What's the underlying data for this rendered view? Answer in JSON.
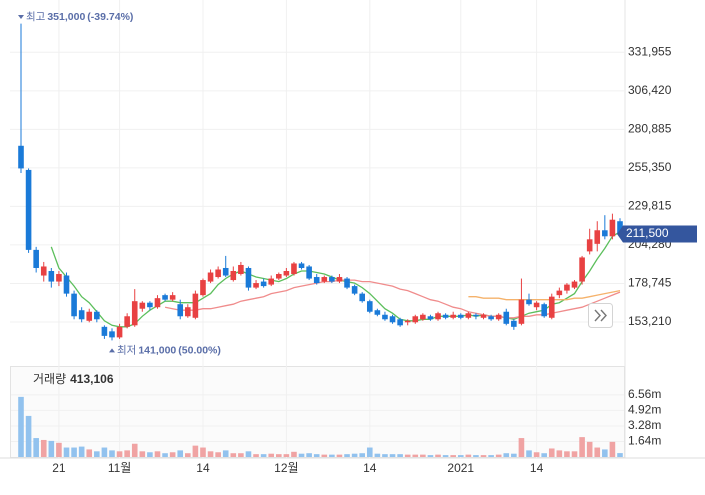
{
  "chart_data": {
    "type": "candlestick",
    "up_color": "#e84142",
    "down_color": "#1a7ad8",
    "grid": true,
    "ylim": [
      130000,
      360000
    ],
    "yticks": [
      {
        "value": 153210,
        "label": "153,210"
      },
      {
        "value": 178745,
        "label": "178,745"
      },
      {
        "value": 204280,
        "label": "204,280"
      },
      {
        "value": 229815,
        "label": "229,815"
      },
      {
        "value": 255350,
        "label": "255,350"
      },
      {
        "value": 280885,
        "label": "280,885"
      },
      {
        "value": 306420,
        "label": "306,420"
      },
      {
        "value": 331955,
        "label": "331,955"
      }
    ],
    "categories": [
      null,
      null,
      null,
      null,
      null,
      "21",
      null,
      null,
      null,
      null,
      null,
      null,
      null,
      "11월",
      null,
      null,
      null,
      null,
      null,
      null,
      null,
      null,
      null,
      null,
      "14",
      null,
      null,
      null,
      null,
      null,
      null,
      null,
      null,
      null,
      null,
      "12월",
      null,
      null,
      null,
      null,
      null,
      null,
      null,
      null,
      null,
      null,
      "14",
      null,
      null,
      null,
      null,
      null,
      null,
      null,
      null,
      null,
      null,
      null,
      "2021",
      null,
      null,
      null,
      null,
      null,
      null,
      null,
      null,
      null,
      "14",
      null,
      null,
      null,
      null,
      null,
      null,
      null,
      null,
      null,
      null,
      null
    ],
    "candles": [
      [
        270000,
        351000,
        252000,
        255000
      ],
      [
        254000,
        255000,
        199000,
        201000
      ],
      [
        201000,
        203000,
        186000,
        189000
      ],
      [
        184000,
        193000,
        180000,
        190000
      ],
      [
        187000,
        189000,
        176000,
        180000
      ],
      [
        180000,
        187000,
        177000,
        185000
      ],
      [
        184000,
        186000,
        170000,
        172000
      ],
      [
        172000,
        174000,
        155000,
        157000
      ],
      [
        161000,
        163000,
        153000,
        155000
      ],
      [
        154000,
        162000,
        153000,
        160000
      ],
      [
        160000,
        161000,
        153000,
        155000
      ],
      [
        150000,
        151000,
        142000,
        144000
      ],
      [
        147000,
        149000,
        141000,
        143000
      ],
      [
        143000,
        152000,
        142000,
        150000
      ],
      [
        150000,
        159000,
        149000,
        157000
      ],
      [
        151000,
        175000,
        150000,
        167000
      ],
      [
        162000,
        167000,
        160000,
        166000
      ],
      [
        166000,
        167000,
        161000,
        163000
      ],
      [
        163000,
        171000,
        162000,
        169000
      ],
      [
        171000,
        172000,
        167000,
        168000
      ],
      [
        168000,
        173000,
        167000,
        171000
      ],
      [
        165000,
        168000,
        155000,
        157000
      ],
      [
        157000,
        165000,
        156000,
        163000
      ],
      [
        156000,
        174000,
        155000,
        172000
      ],
      [
        171000,
        182000,
        170000,
        181000
      ],
      [
        180000,
        188000,
        179000,
        186000
      ],
      [
        183000,
        190000,
        182000,
        188000
      ],
      [
        189000,
        197000,
        183000,
        184000
      ],
      [
        181000,
        190000,
        180000,
        187000
      ],
      [
        185000,
        193000,
        184000,
        191000
      ],
      [
        189000,
        190000,
        174000,
        176000
      ],
      [
        176000,
        181000,
        175000,
        179000
      ],
      [
        180000,
        182000,
        176000,
        177000
      ],
      [
        178000,
        184000,
        177000,
        182000
      ],
      [
        182000,
        186000,
        181000,
        185000
      ],
      [
        184000,
        189000,
        183000,
        187000
      ],
      [
        185000,
        193000,
        184000,
        192000
      ],
      [
        192000,
        193000,
        188000,
        189000
      ],
      [
        190000,
        191000,
        181000,
        182000
      ],
      [
        183000,
        185000,
        178000,
        179000
      ],
      [
        180000,
        184000,
        179000,
        183000
      ],
      [
        183000,
        184000,
        179000,
        180000
      ],
      [
        180000,
        185000,
        179000,
        183000
      ],
      [
        182000,
        183000,
        175000,
        176000
      ],
      [
        177000,
        178000,
        171000,
        172000
      ],
      [
        172000,
        173000,
        166000,
        167000
      ],
      [
        167000,
        168000,
        159000,
        160000
      ],
      [
        161000,
        162000,
        157000,
        158000
      ],
      [
        158000,
        160000,
        154000,
        155000
      ],
      [
        157000,
        158000,
        152000,
        153000
      ],
      [
        155000,
        156000,
        150000,
        151000
      ],
      [
        153000,
        155000,
        151000,
        154000
      ],
      [
        153000,
        158000,
        152000,
        157000
      ],
      [
        155000,
        159000,
        154000,
        158000
      ],
      [
        157000,
        158000,
        154000,
        155000
      ],
      [
        155000,
        160000,
        154000,
        159000
      ],
      [
        158000,
        159000,
        155000,
        156000
      ],
      [
        156000,
        160000,
        155000,
        158000
      ],
      [
        158000,
        159000,
        155000,
        156000
      ],
      [
        156000,
        160000,
        155000,
        159000
      ],
      [
        158000,
        159000,
        155000,
        157000
      ],
      [
        156000,
        159000,
        155000,
        158000
      ],
      [
        157000,
        158000,
        154000,
        155000
      ],
      [
        155000,
        159000,
        154000,
        158000
      ],
      [
        160000,
        162000,
        151000,
        152000
      ],
      [
        154000,
        155000,
        148000,
        150000
      ],
      [
        152000,
        182000,
        151000,
        168000
      ],
      [
        168000,
        172000,
        164000,
        165000
      ],
      [
        163000,
        167000,
        161000,
        166000
      ],
      [
        165000,
        166000,
        156000,
        157000
      ],
      [
        156000,
        172000,
        155000,
        170000
      ],
      [
        171000,
        176000,
        169000,
        174000
      ],
      [
        174000,
        179000,
        172000,
        178000
      ],
      [
        176000,
        181000,
        175000,
        180000
      ],
      [
        180000,
        197000,
        178000,
        196000
      ],
      [
        200000,
        215000,
        198000,
        208000
      ],
      [
        205000,
        220000,
        200000,
        214000
      ],
      [
        214000,
        224000,
        208000,
        210000
      ],
      [
        210000,
        225000,
        208000,
        221000
      ],
      [
        220000,
        222000,
        210000,
        211500
      ]
    ],
    "lines": [
      {
        "color": "#5cbf5c",
        "values": [
          null,
          null,
          null,
          null,
          203000,
          189000,
          183000,
          177000,
          170000,
          166000,
          160000,
          154000,
          151000,
          150000,
          150000,
          152000,
          157000,
          161000,
          164000,
          167000,
          167000,
          166000,
          166000,
          166000,
          169000,
          172000,
          178000,
          182000,
          185000,
          187000,
          185000,
          183000,
          182000,
          181000,
          180000,
          182000,
          185000,
          187000,
          187000,
          186000,
          185000,
          183000,
          181000,
          180000,
          179000,
          176000,
          172000,
          167000,
          162000,
          159000,
          155000,
          154000,
          154000,
          155000,
          155000,
          157000,
          157000,
          157000,
          157000,
          158000,
          157000,
          158000,
          157000,
          157000,
          156000,
          155000,
          157000,
          159000,
          160000,
          161000,
          165000,
          166000,
          169000,
          172000,
          180000,
          187000,
          195000,
          202000,
          210000,
          213000
        ]
      },
      {
        "color": "#f08c8c",
        "values": [
          null,
          null,
          null,
          null,
          null,
          null,
          null,
          null,
          null,
          null,
          null,
          null,
          null,
          null,
          null,
          null,
          null,
          null,
          null,
          163000,
          162000,
          161000,
          161000,
          161000,
          162000,
          162000,
          163000,
          164000,
          165000,
          167000,
          168000,
          169000,
          170000,
          172000,
          173000,
          174000,
          176000,
          177000,
          178000,
          179000,
          180000,
          180000,
          181000,
          181000,
          181000,
          180000,
          180000,
          179000,
          178000,
          177000,
          175000,
          174000,
          172000,
          170000,
          168000,
          167000,
          165000,
          163000,
          162000,
          160000,
          159000,
          158000,
          157000,
          157000,
          156000,
          156000,
          157000,
          157000,
          158000,
          158000,
          159000,
          160000,
          161000,
          162000,
          163000,
          165000,
          167000,
          169000,
          171000,
          173000
        ]
      },
      {
        "color": "#f5b26b",
        "values": [
          null,
          null,
          null,
          null,
          null,
          null,
          null,
          null,
          null,
          null,
          null,
          null,
          null,
          null,
          null,
          null,
          null,
          null,
          null,
          null,
          null,
          null,
          null,
          null,
          null,
          null,
          null,
          null,
          null,
          null,
          null,
          null,
          null,
          null,
          null,
          null,
          null,
          null,
          null,
          null,
          null,
          null,
          null,
          null,
          null,
          null,
          null,
          null,
          null,
          null,
          null,
          null,
          null,
          null,
          null,
          null,
          null,
          null,
          null,
          170000,
          170000,
          169000,
          169000,
          169000,
          168000,
          168000,
          168000,
          168000,
          168000,
          168000,
          168000,
          168000,
          168000,
          169000,
          169000,
          170000,
          171000,
          172000,
          173000,
          174000
        ]
      }
    ],
    "high_annotation": {
      "label": "최고",
      "price": {
        "value": 351000,
        "label": "351,000"
      },
      "change": {
        "value": -39.74,
        "label": "(-39.74%)"
      }
    },
    "low_annotation": {
      "label": "최저",
      "price": {
        "value": 141000,
        "label": "141,000"
      },
      "change": {
        "value": 50.0,
        "label": "(50.00%)"
      }
    },
    "current_price": {
      "value": 211500,
      "label": "211,500"
    },
    "volume": {
      "label": "거래량",
      "last": {
        "value": 413106,
        "label": "413,106"
      },
      "up_color": "#f0a3a3",
      "down_color": "#92c2ee",
      "ylim": [
        0,
        9400000
      ],
      "yticks": [
        {
          "value": 1640000,
          "label": "1.64m"
        },
        {
          "value": 3280000,
          "label": "3.28m"
        },
        {
          "value": 4920000,
          "label": "4.92m"
        },
        {
          "value": 6560000,
          "label": "6.56m"
        }
      ],
      "values": [
        6350000,
        4340000,
        2000000,
        1800000,
        1700000,
        1500000,
        1000000,
        1000000,
        1100000,
        800000,
        600000,
        1000000,
        700000,
        600000,
        700000,
        1400000,
        600000,
        500000,
        600000,
        400000,
        500000,
        700000,
        400000,
        1200000,
        1000000,
        600000,
        500000,
        700000,
        400000,
        400000,
        600000,
        300000,
        300000,
        350000,
        300000,
        300000,
        550000,
        350000,
        400000,
        300000,
        250000,
        250000,
        250000,
        300000,
        350000,
        400000,
        1000000,
        350000,
        300000,
        300000,
        300000,
        250000,
        250000,
        250000,
        200000,
        250000,
        200000,
        200000,
        200000,
        250000,
        200000,
        200000,
        200000,
        250000,
        400000,
        350000,
        2000000,
        700000,
        500000,
        400000,
        900000,
        700000,
        600000,
        600000,
        2100000,
        1600000,
        1000000,
        800000,
        1600000,
        413106
      ]
    }
  }
}
